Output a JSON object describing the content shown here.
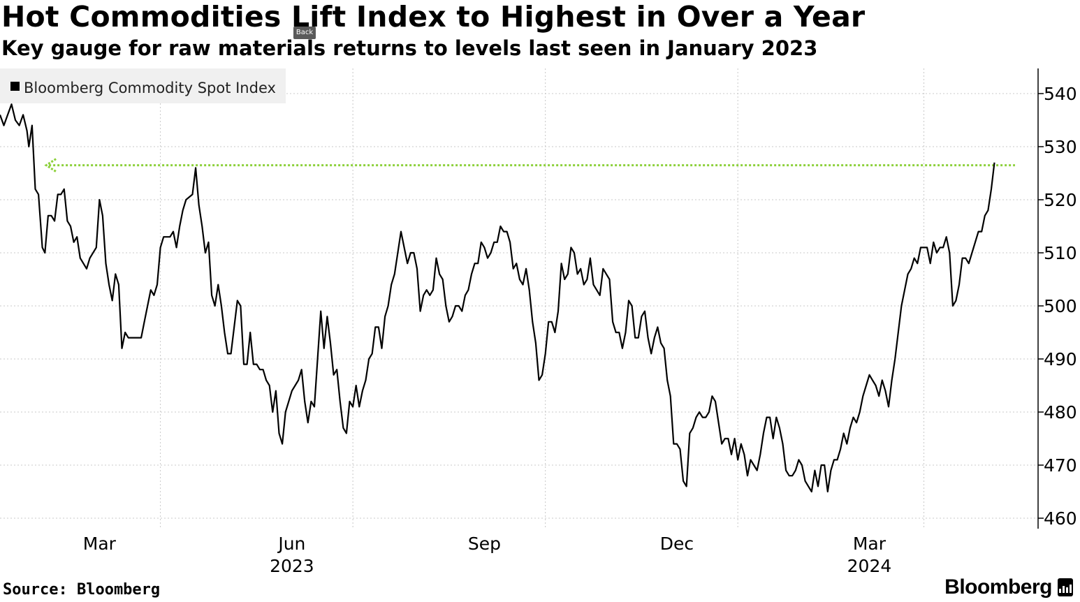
{
  "header": {
    "title": "Hot Commodities Lift Index to Highest in Over a Year",
    "subtitle": "Key gauge for raw materials returns to levels last seen in January 2023",
    "back_label": "Back"
  },
  "footer": {
    "source": "Source: Bloomberg",
    "brand": "Bloomberg"
  },
  "colors": {
    "line": "#000000",
    "reference": "#8cd03a",
    "grid": "#c8c8c8",
    "legend_bg": "#f0f0f0"
  },
  "chart_data": {
    "type": "line",
    "title": "Hot Commodities Lift Index to Highest in Over a Year",
    "subtitle": "Key gauge for raw materials returns to levels last seen in January 2023",
    "xlabel": "",
    "ylabel": "",
    "legend": "top-left",
    "grid": true,
    "ylim": [
      457,
      545
    ],
    "yticks": [
      540,
      530,
      520,
      510,
      500,
      490,
      480,
      470,
      460
    ],
    "ytick_labels": [
      "540",
      "530",
      "520",
      "510",
      "500",
      "490",
      "480",
      "470",
      "460"
    ],
    "x_range_months": [
      0.0,
      16.18
    ],
    "xticks": [
      {
        "pos": 1.55,
        "label": "Mar",
        "year": ""
      },
      {
        "pos": 4.55,
        "label": "Jun",
        "year": "2023"
      },
      {
        "pos": 7.55,
        "label": "Sep",
        "year": ""
      },
      {
        "pos": 10.55,
        "label": "Dec",
        "year": ""
      },
      {
        "pos": 13.55,
        "label": "Mar",
        "year": "2024"
      }
    ],
    "gridlines_x": [
      2.5,
      5.5,
      8.5,
      11.5,
      14.4
    ],
    "reference_line": {
      "value": 526.5,
      "x_start": 0.72,
      "x_end": 15.82
    },
    "series": [
      {
        "name": "Bloomberg Commodity Spot Index",
        "x_unit": "months since mid-Jan 2023",
        "points": [
          [
            0.0,
            536
          ],
          [
            0.06,
            534
          ],
          [
            0.12,
            536
          ],
          [
            0.18,
            538
          ],
          [
            0.24,
            535
          ],
          [
            0.3,
            534
          ],
          [
            0.36,
            536
          ],
          [
            0.42,
            533
          ],
          [
            0.45,
            530
          ],
          [
            0.5,
            534
          ],
          [
            0.55,
            522
          ],
          [
            0.6,
            521
          ],
          [
            0.66,
            511
          ],
          [
            0.7,
            510
          ],
          [
            0.75,
            517
          ],
          [
            0.8,
            517
          ],
          [
            0.85,
            516
          ],
          [
            0.9,
            521
          ],
          [
            0.95,
            521
          ],
          [
            1.0,
            522
          ],
          [
            1.05,
            516
          ],
          [
            1.1,
            515
          ],
          [
            1.15,
            512
          ],
          [
            1.2,
            513
          ],
          [
            1.25,
            509
          ],
          [
            1.3,
            508
          ],
          [
            1.35,
            507
          ],
          [
            1.4,
            509
          ],
          [
            1.5,
            511
          ],
          [
            1.55,
            520
          ],
          [
            1.6,
            517
          ],
          [
            1.65,
            508
          ],
          [
            1.7,
            504
          ],
          [
            1.75,
            501
          ],
          [
            1.8,
            506
          ],
          [
            1.85,
            504
          ],
          [
            1.9,
            492
          ],
          [
            1.95,
            495
          ],
          [
            2.0,
            494
          ],
          [
            2.1,
            494
          ],
          [
            2.2,
            494
          ],
          [
            2.25,
            497
          ],
          [
            2.3,
            500
          ],
          [
            2.35,
            503
          ],
          [
            2.4,
            502
          ],
          [
            2.45,
            504
          ],
          [
            2.5,
            511
          ],
          [
            2.55,
            513
          ],
          [
            2.6,
            513
          ],
          [
            2.65,
            513
          ],
          [
            2.7,
            514
          ],
          [
            2.75,
            511
          ],
          [
            2.8,
            515
          ],
          [
            2.85,
            518
          ],
          [
            2.9,
            520
          ],
          [
            3.0,
            521
          ],
          [
            3.05,
            526
          ],
          [
            3.1,
            519
          ],
          [
            3.15,
            515
          ],
          [
            3.2,
            510
          ],
          [
            3.25,
            512
          ],
          [
            3.3,
            502
          ],
          [
            3.35,
            500
          ],
          [
            3.4,
            504
          ],
          [
            3.45,
            500
          ],
          [
            3.5,
            495
          ],
          [
            3.55,
            491
          ],
          [
            3.6,
            491
          ],
          [
            3.65,
            496
          ],
          [
            3.7,
            501
          ],
          [
            3.75,
            500
          ],
          [
            3.8,
            489
          ],
          [
            3.85,
            489
          ],
          [
            3.9,
            495
          ],
          [
            3.95,
            489
          ],
          [
            4.0,
            489
          ],
          [
            4.05,
            488
          ],
          [
            4.1,
            488
          ],
          [
            4.15,
            486
          ],
          [
            4.2,
            485
          ],
          [
            4.25,
            480
          ],
          [
            4.3,
            484
          ],
          [
            4.35,
            476
          ],
          [
            4.4,
            474
          ],
          [
            4.45,
            480
          ],
          [
            4.5,
            482
          ],
          [
            4.55,
            484
          ],
          [
            4.6,
            485
          ],
          [
            4.65,
            486
          ],
          [
            4.7,
            488
          ],
          [
            4.75,
            482
          ],
          [
            4.8,
            478
          ],
          [
            4.85,
            482
          ],
          [
            4.9,
            481
          ],
          [
            4.95,
            490
          ],
          [
            5.0,
            499
          ],
          [
            5.05,
            492
          ],
          [
            5.1,
            498
          ],
          [
            5.15,
            493
          ],
          [
            5.2,
            487
          ],
          [
            5.25,
            488
          ],
          [
            5.3,
            482
          ],
          [
            5.35,
            477
          ],
          [
            5.4,
            476
          ],
          [
            5.45,
            482
          ],
          [
            5.5,
            481
          ],
          [
            5.55,
            485
          ],
          [
            5.6,
            481
          ],
          [
            5.65,
            484
          ],
          [
            5.7,
            486
          ],
          [
            5.75,
            490
          ],
          [
            5.8,
            491
          ],
          [
            5.85,
            496
          ],
          [
            5.9,
            496
          ],
          [
            5.95,
            492
          ],
          [
            6.0,
            498
          ],
          [
            6.05,
            500
          ],
          [
            6.1,
            504
          ],
          [
            6.15,
            506
          ],
          [
            6.2,
            510
          ],
          [
            6.25,
            514
          ],
          [
            6.3,
            511
          ],
          [
            6.35,
            508
          ],
          [
            6.4,
            510
          ],
          [
            6.45,
            510
          ],
          [
            6.5,
            507
          ],
          [
            6.55,
            499
          ],
          [
            6.6,
            502
          ],
          [
            6.65,
            503
          ],
          [
            6.7,
            502
          ],
          [
            6.75,
            503
          ],
          [
            6.8,
            509
          ],
          [
            6.85,
            506
          ],
          [
            6.9,
            505
          ],
          [
            6.95,
            500
          ],
          [
            7.0,
            497
          ],
          [
            7.05,
            498
          ],
          [
            7.1,
            500
          ],
          [
            7.15,
            500
          ],
          [
            7.2,
            499
          ],
          [
            7.25,
            502
          ],
          [
            7.3,
            503
          ],
          [
            7.35,
            506
          ],
          [
            7.4,
            508
          ],
          [
            7.45,
            508
          ],
          [
            7.5,
            512
          ],
          [
            7.55,
            511
          ],
          [
            7.6,
            509
          ],
          [
            7.65,
            510
          ],
          [
            7.7,
            512
          ],
          [
            7.75,
            512
          ],
          [
            7.8,
            515
          ],
          [
            7.85,
            514
          ],
          [
            7.9,
            514
          ],
          [
            7.95,
            512
          ],
          [
            8.0,
            507
          ],
          [
            8.05,
            508
          ],
          [
            8.1,
            505
          ],
          [
            8.15,
            504
          ],
          [
            8.2,
            507
          ],
          [
            8.25,
            503
          ],
          [
            8.3,
            497
          ],
          [
            8.35,
            493
          ],
          [
            8.4,
            486
          ],
          [
            8.45,
            487
          ],
          [
            8.5,
            491
          ],
          [
            8.55,
            497
          ],
          [
            8.6,
            497
          ],
          [
            8.65,
            495
          ],
          [
            8.7,
            499
          ],
          [
            8.75,
            508
          ],
          [
            8.8,
            505
          ],
          [
            8.85,
            506
          ],
          [
            8.9,
            511
          ],
          [
            8.95,
            510
          ],
          [
            9.0,
            506
          ],
          [
            9.05,
            507
          ],
          [
            9.1,
            504
          ],
          [
            9.15,
            505
          ],
          [
            9.2,
            509
          ],
          [
            9.25,
            504
          ],
          [
            9.3,
            503
          ],
          [
            9.35,
            502
          ],
          [
            9.4,
            507
          ],
          [
            9.45,
            506
          ],
          [
            9.5,
            505
          ],
          [
            9.55,
            497
          ],
          [
            9.6,
            495
          ],
          [
            9.65,
            495
          ],
          [
            9.7,
            492
          ],
          [
            9.75,
            495
          ],
          [
            9.8,
            501
          ],
          [
            9.85,
            500
          ],
          [
            9.9,
            494
          ],
          [
            9.95,
            494
          ],
          [
            10.0,
            498
          ],
          [
            10.05,
            499
          ],
          [
            10.1,
            494
          ],
          [
            10.15,
            491
          ],
          [
            10.2,
            494
          ],
          [
            10.25,
            496
          ],
          [
            10.3,
            493
          ],
          [
            10.35,
            492
          ],
          [
            10.4,
            486
          ],
          [
            10.45,
            483
          ],
          [
            10.5,
            474
          ],
          [
            10.55,
            474
          ],
          [
            10.6,
            473
          ],
          [
            10.65,
            467
          ],
          [
            10.7,
            466
          ],
          [
            10.75,
            476
          ],
          [
            10.8,
            477
          ],
          [
            10.85,
            479
          ],
          [
            10.9,
            480
          ],
          [
            10.95,
            479
          ],
          [
            11.0,
            479
          ],
          [
            11.05,
            480
          ],
          [
            11.1,
            483
          ],
          [
            11.15,
            482
          ],
          [
            11.2,
            478
          ],
          [
            11.25,
            474
          ],
          [
            11.3,
            475
          ],
          [
            11.35,
            475
          ],
          [
            11.4,
            472
          ],
          [
            11.45,
            475
          ],
          [
            11.5,
            471
          ],
          [
            11.55,
            474
          ],
          [
            11.6,
            472
          ],
          [
            11.65,
            468
          ],
          [
            11.7,
            471
          ],
          [
            11.75,
            470
          ],
          [
            11.8,
            469
          ],
          [
            11.85,
            472
          ],
          [
            11.9,
            476
          ],
          [
            11.95,
            479
          ],
          [
            12.0,
            479
          ],
          [
            12.05,
            475
          ],
          [
            12.1,
            479
          ],
          [
            12.15,
            477
          ],
          [
            12.2,
            474
          ],
          [
            12.25,
            469
          ],
          [
            12.3,
            468
          ],
          [
            12.35,
            468
          ],
          [
            12.4,
            469
          ],
          [
            12.45,
            471
          ],
          [
            12.5,
            470
          ],
          [
            12.55,
            467
          ],
          [
            12.6,
            466
          ],
          [
            12.65,
            465
          ],
          [
            12.7,
            469
          ],
          [
            12.75,
            466
          ],
          [
            12.8,
            470
          ],
          [
            12.85,
            470
          ],
          [
            12.9,
            465
          ],
          [
            12.95,
            469
          ],
          [
            13.0,
            471
          ],
          [
            13.05,
            471
          ],
          [
            13.1,
            473
          ],
          [
            13.15,
            476
          ],
          [
            13.2,
            474
          ],
          [
            13.25,
            477
          ],
          [
            13.3,
            479
          ],
          [
            13.35,
            478
          ],
          [
            13.4,
            480
          ],
          [
            13.45,
            483
          ],
          [
            13.5,
            485
          ],
          [
            13.55,
            487
          ],
          [
            13.6,
            486
          ],
          [
            13.65,
            485
          ],
          [
            13.7,
            483
          ],
          [
            13.75,
            486
          ],
          [
            13.8,
            484
          ],
          [
            13.85,
            481
          ],
          [
            13.9,
            486
          ],
          [
            13.95,
            490
          ],
          [
            14.0,
            495
          ],
          [
            14.05,
            500
          ],
          [
            14.1,
            503
          ],
          [
            14.15,
            506
          ],
          [
            14.2,
            507
          ],
          [
            14.25,
            509
          ],
          [
            14.3,
            508
          ],
          [
            14.35,
            511
          ],
          [
            14.4,
            511
          ],
          [
            14.45,
            511
          ],
          [
            14.5,
            508
          ],
          [
            14.55,
            512
          ],
          [
            14.6,
            510
          ],
          [
            14.65,
            511
          ],
          [
            14.7,
            511
          ],
          [
            14.75,
            513
          ],
          [
            14.8,
            510
          ],
          [
            14.85,
            500
          ],
          [
            14.9,
            501
          ],
          [
            14.95,
            504
          ],
          [
            15.0,
            509
          ],
          [
            15.05,
            509
          ],
          [
            15.1,
            508
          ],
          [
            15.15,
            510
          ],
          [
            15.2,
            512
          ],
          [
            15.25,
            514
          ],
          [
            15.3,
            514
          ],
          [
            15.35,
            517
          ],
          [
            15.4,
            518
          ],
          [
            15.45,
            522
          ],
          [
            15.5,
            527
          ]
        ]
      }
    ]
  }
}
